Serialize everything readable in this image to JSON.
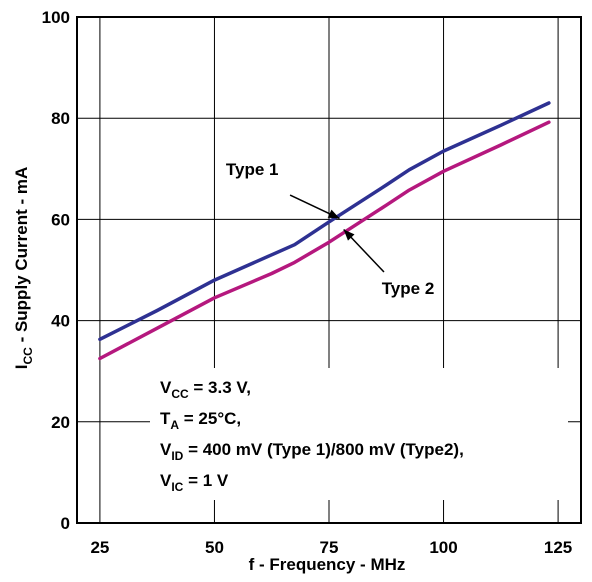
{
  "chart_data": {
    "type": "line",
    "xlabel": "f - Frequency - MHz",
    "ylabel": {
      "main": "I",
      "sub": "CC",
      "rest": " - Supply Current - mA"
    },
    "xlim": [
      20,
      130
    ],
    "ylim": [
      0,
      100
    ],
    "xticks": [
      25,
      50,
      75,
      100,
      125
    ],
    "yticks": [
      0,
      20,
      40,
      60,
      80,
      100
    ],
    "grid": true,
    "series": [
      {
        "name": "Type 1",
        "color": "#2e3192",
        "x": [
          25,
          37.5,
          50,
          62.5,
          67.5,
          75,
          87.5,
          92.5,
          100,
          112.5,
          123
        ],
        "y": [
          36.3,
          42,
          48,
          53,
          55,
          59.5,
          66.8,
          69.8,
          73.5,
          78.6,
          83
        ]
      },
      {
        "name": "Type 2",
        "color": "#b5187e",
        "x": [
          25,
          37.5,
          50,
          62.5,
          67.5,
          75,
          87.5,
          92.5,
          100,
          112.5,
          123
        ],
        "y": [
          32.5,
          38.5,
          44.5,
          49.3,
          51.5,
          55.5,
          62.8,
          65.8,
          69.5,
          74.7,
          79.2
        ]
      }
    ],
    "annotations": [
      {
        "label": "Type 1",
        "text_x": 52.5,
        "text_y": 68.8,
        "arrow_to_x": 77.3,
        "arrow_to_y": 60.2,
        "arrow_from_x": 66.5,
        "arrow_from_y": 64.8
      },
      {
        "label": "Type 2",
        "text_x": 86.5,
        "text_y": 45.3,
        "arrow_to_x": 78.2,
        "arrow_to_y": 58.0,
        "arrow_from_x": 87.0,
        "arrow_from_y": 49.6
      }
    ],
    "conditions": [
      [
        {
          "t": "V"
        },
        {
          "t": "CC",
          "sub": true
        },
        {
          "t": " = 3.3 V,"
        }
      ],
      [
        {
          "t": "T"
        },
        {
          "t": "A",
          "sub": true
        },
        {
          "t": " = 25°C,"
        }
      ],
      [
        {
          "t": "V"
        },
        {
          "t": "ID",
          "sub": true
        },
        {
          "t": " = 400 mV (Type 1)/800 mV (Type2),"
        }
      ],
      [
        {
          "t": "V"
        },
        {
          "t": "IC",
          "sub": true
        },
        {
          "t": " = 1 V"
        }
      ]
    ]
  }
}
